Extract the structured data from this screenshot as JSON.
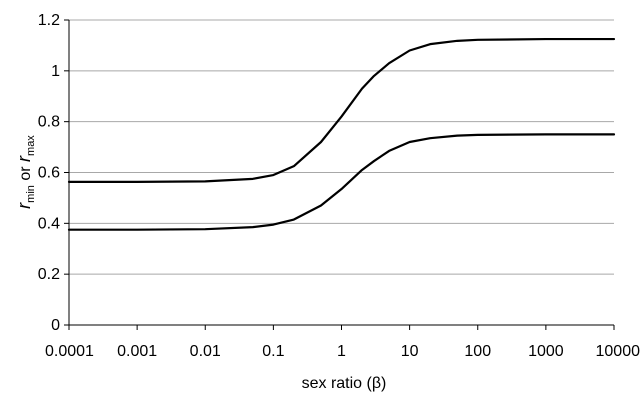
{
  "chart_data": {
    "type": "line",
    "xlabel": "sex ratio (β)",
    "ylabel_parts": [
      "r",
      "min",
      " or ",
      "r",
      "max"
    ],
    "x_scale": "log",
    "xlim": [
      0.0001,
      10000
    ],
    "ylim": [
      0,
      1.2
    ],
    "x_ticks": [
      "0.0001",
      "0.001",
      "0.01",
      "0.1",
      "1",
      "10",
      "100",
      "1000",
      "10000"
    ],
    "y_ticks": [
      "0",
      "0.2",
      "0.4",
      "0.6",
      "0.8",
      "1",
      "1.2"
    ],
    "grid": "horizontal",
    "colors": {
      "line": "#000000",
      "grid": "#a8a8a8",
      "axis": "#000000"
    },
    "series": [
      {
        "x": [
          0.0001,
          0.001,
          0.01,
          0.05,
          0.1,
          0.2,
          0.5,
          1,
          2,
          3,
          5,
          10,
          20,
          50,
          100,
          1000,
          10000
        ],
        "values": [
          0.563,
          0.563,
          0.565,
          0.575,
          0.59,
          0.625,
          0.72,
          0.82,
          0.93,
          0.98,
          1.03,
          1.08,
          1.105,
          1.118,
          1.122,
          1.125,
          1.125
        ]
      },
      {
        "x": [
          0.0001,
          0.001,
          0.01,
          0.05,
          0.1,
          0.2,
          0.5,
          1,
          2,
          3,
          5,
          10,
          20,
          50,
          100,
          1000,
          10000
        ],
        "values": [
          0.375,
          0.375,
          0.377,
          0.385,
          0.395,
          0.415,
          0.47,
          0.535,
          0.61,
          0.645,
          0.685,
          0.72,
          0.735,
          0.745,
          0.748,
          0.75,
          0.75
        ]
      }
    ]
  }
}
